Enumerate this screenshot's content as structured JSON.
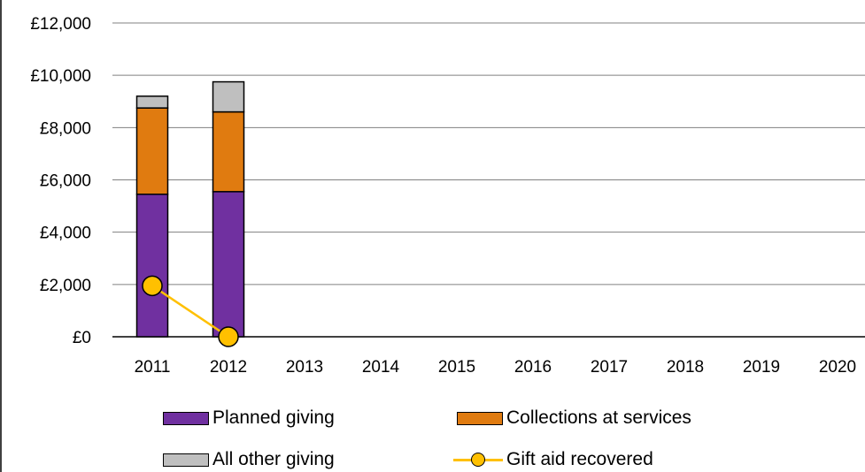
{
  "chart_data": {
    "type": "bar",
    "stacked": true,
    "categories": [
      "2011",
      "2012",
      "2013",
      "2014",
      "2015",
      "2016",
      "2017",
      "2018",
      "2019",
      "2020"
    ],
    "series": [
      {
        "name": "Planned giving",
        "values": [
          5450,
          5550,
          null,
          null,
          null,
          null,
          null,
          null,
          null,
          null
        ],
        "color": "#7030a0"
      },
      {
        "name": "Collections at services",
        "values": [
          3300,
          3050,
          null,
          null,
          null,
          null,
          null,
          null,
          null,
          null
        ],
        "color": "#e07b10"
      },
      {
        "name": "All other giving",
        "values": [
          450,
          1150,
          null,
          null,
          null,
          null,
          null,
          null,
          null,
          null
        ],
        "color": "#bfbfbf"
      }
    ],
    "line_series": {
      "name": "Gift aid recovered",
      "type": "line",
      "values": [
        1950,
        0,
        null,
        null,
        null,
        null,
        null,
        null,
        null,
        null
      ],
      "color": "#ffc000"
    },
    "y_ticks": [
      "£0",
      "£2,000",
      "£4,000",
      "£6,000",
      "£8,000",
      "£10,000",
      "£12,000"
    ],
    "ylim": [
      0,
      12000
    ],
    "grid": true,
    "legend_position": "bottom",
    "title": "",
    "xlabel": "",
    "ylabel": ""
  }
}
